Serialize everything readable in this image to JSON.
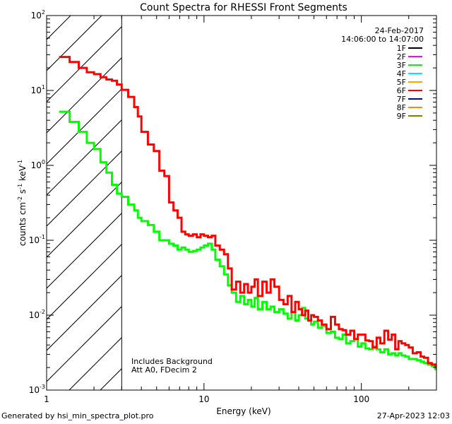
{
  "chart_data": {
    "type": "line",
    "title": "Count Spectra for RHESSI Front Segments",
    "xlabel": "Energy (keV)",
    "ylabel": {
      "base": "counts cm",
      "exp1": "-2",
      "mid1": " s",
      "exp2": "-1",
      "mid2": " keV",
      "exp3": "-1"
    },
    "xscale": "log",
    "yscale": "log",
    "xlim": [
      1.0,
      300.0
    ],
    "ylim": [
      0.001,
      100.0
    ],
    "x_ticks": [
      {
        "value": 1,
        "label": "1"
      },
      {
        "value": 10,
        "label": "10"
      },
      {
        "value": 100,
        "label": "100"
      }
    ],
    "y_ticks": [
      {
        "value": 0.001,
        "base": "10",
        "exp": "-3"
      },
      {
        "value": 0.01,
        "base": "10",
        "exp": "-2"
      },
      {
        "value": 0.1,
        "base": "10",
        "exp": "-1"
      },
      {
        "value": 1,
        "base": "10",
        "exp": "0"
      },
      {
        "value": 10,
        "base": "10",
        "exp": "1"
      },
      {
        "value": 100,
        "base": "10",
        "exp": "2"
      }
    ],
    "date": "24-Feb-2017",
    "time_range": "14:06:00 to 14:07:00",
    "legend": [
      {
        "name": "1F",
        "color": "#000000"
      },
      {
        "name": "2F",
        "color": "#ff00ff"
      },
      {
        "name": "3F",
        "color": "#00ff00"
      },
      {
        "name": "4F",
        "color": "#00e5ff"
      },
      {
        "name": "5F",
        "color": "#ffa500"
      },
      {
        "name": "6F",
        "color": "#ff0000"
      },
      {
        "name": "7F",
        "color": "#0000cc"
      },
      {
        "name": "8F",
        "color": "#ff8c00"
      },
      {
        "name": "9F",
        "color": "#808000"
      }
    ],
    "annotations": [
      "Includes Background",
      "Att A0, FDecim 2"
    ],
    "hatch_region_xmax": 3.0,
    "series": [
      {
        "name": "6F",
        "color": "#ff0000",
        "points": [
          [
            1.2,
            28
          ],
          [
            1.4,
            24
          ],
          [
            1.6,
            20
          ],
          [
            1.8,
            17.5
          ],
          [
            2.0,
            16.5
          ],
          [
            2.2,
            15
          ],
          [
            2.4,
            14
          ],
          [
            2.6,
            13.5
          ],
          [
            2.8,
            12
          ],
          [
            3.0,
            10.2
          ],
          [
            3.3,
            8.2
          ],
          [
            3.6,
            6.0
          ],
          [
            3.8,
            4.5
          ],
          [
            4.0,
            2.8
          ],
          [
            4.4,
            1.9
          ],
          [
            4.8,
            1.55
          ],
          [
            5.2,
            0.85
          ],
          [
            5.6,
            0.72
          ],
          [
            6.0,
            0.32
          ],
          [
            6.4,
            0.25
          ],
          [
            6.8,
            0.2
          ],
          [
            7.2,
            0.13
          ],
          [
            7.6,
            0.12
          ],
          [
            8.0,
            0.115
          ],
          [
            8.5,
            0.12
          ],
          [
            9.0,
            0.11
          ],
          [
            9.5,
            0.12
          ],
          [
            10.0,
            0.115
          ],
          [
            10.6,
            0.11
          ],
          [
            11.2,
            0.115
          ],
          [
            11.8,
            0.085
          ],
          [
            12.6,
            0.075
          ],
          [
            13.4,
            0.065
          ],
          [
            14.2,
            0.042
          ],
          [
            15.0,
            0.022
          ],
          [
            16.0,
            0.028
          ],
          [
            17.0,
            0.02
          ],
          [
            18.0,
            0.026
          ],
          [
            19.0,
            0.02
          ],
          [
            20.0,
            0.024
          ],
          [
            21.0,
            0.03
          ],
          [
            22.0,
            0.018
          ],
          [
            23.5,
            0.028
          ],
          [
            25.0,
            0.02
          ],
          [
            26.5,
            0.03
          ],
          [
            28.0,
            0.024
          ],
          [
            30.0,
            0.016
          ],
          [
            32.0,
            0.014
          ],
          [
            34.0,
            0.018
          ],
          [
            36.0,
            0.011
          ],
          [
            38.0,
            0.015
          ],
          [
            40.0,
            0.012
          ],
          [
            42.0,
            0.01
          ],
          [
            44.0,
            0.0115
          ],
          [
            46.0,
            0.0085
          ],
          [
            48.0,
            0.01
          ],
          [
            50.0,
            0.0095
          ],
          [
            53.0,
            0.0085
          ],
          [
            56.0,
            0.0075
          ],
          [
            60.0,
            0.0065
          ],
          [
            64.0,
            0.0095
          ],
          [
            68.0,
            0.0075
          ],
          [
            72.0,
            0.0065
          ],
          [
            76.0,
            0.0063
          ],
          [
            80.0,
            0.0055
          ],
          [
            85.0,
            0.0062
          ],
          [
            90.0,
            0.0048
          ],
          [
            95.0,
            0.0055
          ],
          [
            100.0,
            0.0055
          ],
          [
            106.0,
            0.0046
          ],
          [
            112.0,
            0.0045
          ],
          [
            118.0,
            0.0037
          ],
          [
            125.0,
            0.005
          ],
          [
            132.0,
            0.0042
          ],
          [
            140.0,
            0.0062
          ],
          [
            148.0,
            0.0047
          ],
          [
            156.0,
            0.0055
          ],
          [
            164.0,
            0.0035
          ],
          [
            172.0,
            0.0045
          ],
          [
            180.0,
            0.0042
          ],
          [
            190.0,
            0.004
          ],
          [
            200.0,
            0.0037
          ],
          [
            212.0,
            0.0031
          ],
          [
            225.0,
            0.0032
          ],
          [
            238.0,
            0.0028
          ],
          [
            250.0,
            0.0027
          ],
          [
            265.0,
            0.0023
          ],
          [
            280.0,
            0.0022
          ],
          [
            295.0,
            0.0021
          ]
        ]
      },
      {
        "name": "3F",
        "color": "#00ff00",
        "points": [
          [
            1.2,
            5.2
          ],
          [
            1.4,
            3.8
          ],
          [
            1.6,
            2.8
          ],
          [
            1.8,
            2.0
          ],
          [
            2.0,
            1.65
          ],
          [
            2.2,
            1.1
          ],
          [
            2.4,
            0.8
          ],
          [
            2.6,
            0.55
          ],
          [
            2.8,
            0.42
          ],
          [
            3.0,
            0.38
          ],
          [
            3.3,
            0.3
          ],
          [
            3.6,
            0.25
          ],
          [
            3.8,
            0.2
          ],
          [
            4.0,
            0.18
          ],
          [
            4.4,
            0.16
          ],
          [
            4.8,
            0.13
          ],
          [
            5.2,
            0.1
          ],
          [
            5.6,
            0.1
          ],
          [
            6.0,
            0.09
          ],
          [
            6.4,
            0.085
          ],
          [
            6.8,
            0.075
          ],
          [
            7.2,
            0.08
          ],
          [
            7.6,
            0.075
          ],
          [
            8.0,
            0.07
          ],
          [
            8.5,
            0.072
          ],
          [
            9.0,
            0.075
          ],
          [
            9.5,
            0.08
          ],
          [
            10.0,
            0.085
          ],
          [
            10.6,
            0.09
          ],
          [
            11.2,
            0.075
          ],
          [
            11.8,
            0.055
          ],
          [
            12.6,
            0.045
          ],
          [
            13.4,
            0.035
          ],
          [
            14.2,
            0.025
          ],
          [
            15.0,
            0.02
          ],
          [
            16.0,
            0.015
          ],
          [
            17.0,
            0.018
          ],
          [
            18.0,
            0.014
          ],
          [
            19.0,
            0.016
          ],
          [
            20.0,
            0.013
          ],
          [
            21.0,
            0.017
          ],
          [
            22.0,
            0.012
          ],
          [
            23.5,
            0.015
          ],
          [
            25.0,
            0.012
          ],
          [
            26.5,
            0.013
          ],
          [
            28.0,
            0.011
          ],
          [
            30.0,
            0.012
          ],
          [
            32.0,
            0.0105
          ],
          [
            34.0,
            0.009
          ],
          [
            36.0,
            0.011
          ],
          [
            38.0,
            0.0085
          ],
          [
            40.0,
            0.01
          ],
          [
            42.0,
            0.0125
          ],
          [
            44.0,
            0.009
          ],
          [
            46.0,
            0.0085
          ],
          [
            48.0,
            0.0075
          ],
          [
            50.0,
            0.0082
          ],
          [
            53.0,
            0.0068
          ],
          [
            56.0,
            0.0072
          ],
          [
            60.0,
            0.0058
          ],
          [
            64.0,
            0.006
          ],
          [
            68.0,
            0.005
          ],
          [
            72.0,
            0.0048
          ],
          [
            76.0,
            0.0055
          ],
          [
            80.0,
            0.0042
          ],
          [
            85.0,
            0.0045
          ],
          [
            90.0,
            0.0048
          ],
          [
            95.0,
            0.0038
          ],
          [
            100.0,
            0.0042
          ],
          [
            106.0,
            0.0036
          ],
          [
            112.0,
            0.0035
          ],
          [
            118.0,
            0.0038
          ],
          [
            125.0,
            0.0035
          ],
          [
            132.0,
            0.0032
          ],
          [
            140.0,
            0.0035
          ],
          [
            148.0,
            0.003
          ],
          [
            156.0,
            0.0031
          ],
          [
            164.0,
            0.0029
          ],
          [
            172.0,
            0.0031
          ],
          [
            180.0,
            0.0029
          ],
          [
            190.0,
            0.0028
          ],
          [
            200.0,
            0.0026
          ],
          [
            212.0,
            0.0026
          ],
          [
            225.0,
            0.0025
          ],
          [
            238.0,
            0.0024
          ],
          [
            250.0,
            0.0023
          ],
          [
            265.0,
            0.0022
          ],
          [
            280.0,
            0.0021
          ],
          [
            295.0,
            0.0019
          ]
        ]
      }
    ]
  },
  "footer": {
    "generated_by": "Generated by hsi_min_spectra_plot.pro",
    "timestamp": "27-Apr-2023 12:03"
  }
}
